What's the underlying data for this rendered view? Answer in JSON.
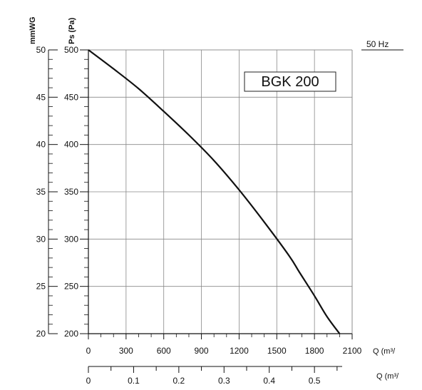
{
  "chart_data": {
    "type": "line",
    "legend_box": "BGK 200",
    "frequency_label": "50 Hz",
    "y_axis_left_title": "mmWG",
    "y_axis_right_title": "Ps (Pa)",
    "x_axis_primary_unit": "Q (m³/",
    "x_axis_secondary_unit": "Q (m³/",
    "x_ticks": [
      0,
      300,
      600,
      900,
      1200,
      1500,
      1800,
      2100
    ],
    "x_ticks_secondary": [
      0,
      0.1,
      0.2,
      0.3,
      0.4,
      0.5
    ],
    "y_ticks_pa": [
      200,
      250,
      300,
      350,
      400,
      450,
      500
    ],
    "y_ticks_mmwg": [
      20,
      25,
      30,
      35,
      40,
      45,
      50
    ],
    "xlim": [
      0,
      2100
    ],
    "ylim": [
      200,
      500
    ],
    "grid": true,
    "series": [
      {
        "color": "#111111",
        "x": [
          0,
          200,
          400,
          600,
          800,
          1000,
          1200,
          1400,
          1600,
          1680,
          1800,
          1900,
          2000
        ],
        "y": [
          500,
          480,
          459,
          435,
          410,
          383,
          352,
          318,
          282,
          265,
          240,
          218,
          200
        ]
      }
    ]
  }
}
